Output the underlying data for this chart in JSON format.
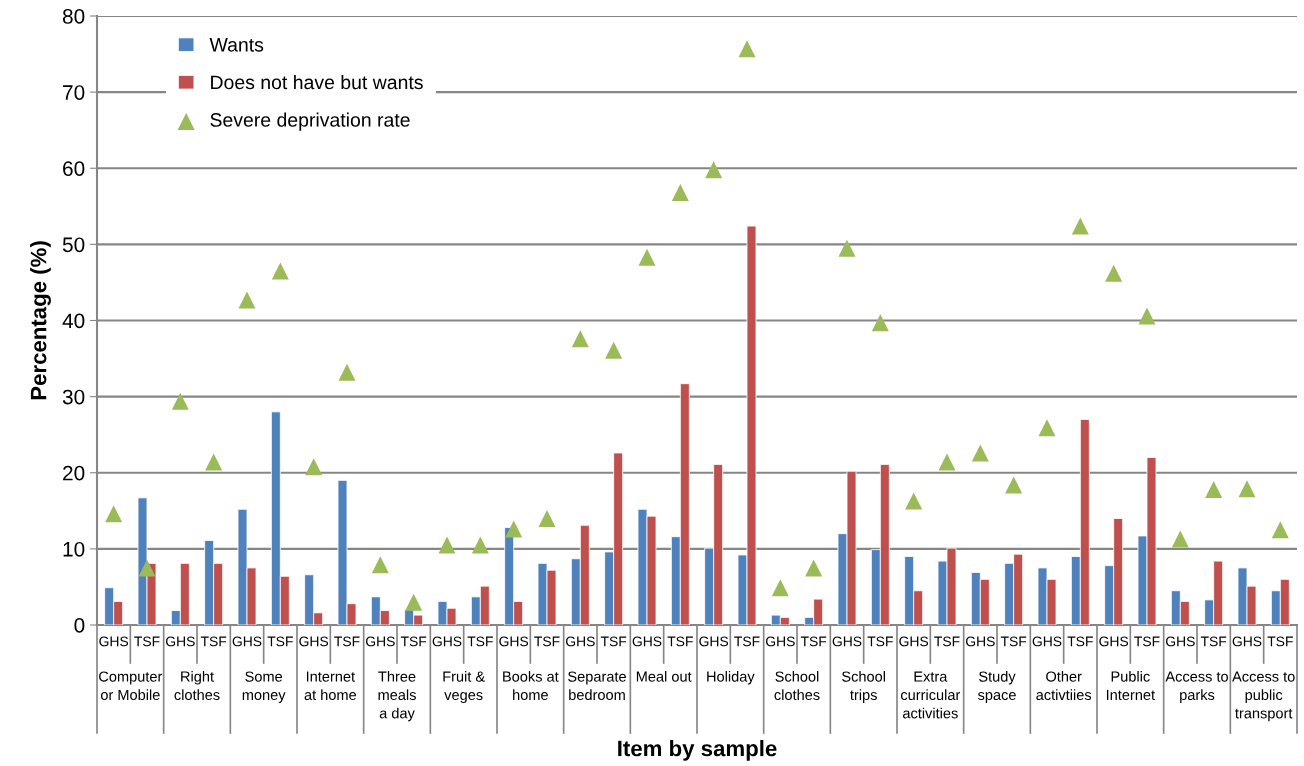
{
  "chart_data": {
    "type": "bar",
    "xlabel": "Item by sample",
    "ylabel": "Percentage (%)",
    "categories": [
      "GHS",
      "TSF",
      "GHS",
      "TSF",
      "GHS",
      "TSF",
      "GHS",
      "TSF",
      "GHS",
      "TSF",
      "GHS",
      "TSF",
      "GHS",
      "TSF",
      "GHS",
      "TSF",
      "GHS",
      "TSF",
      "GHS",
      "TSF",
      "GHS",
      "TSF",
      "GHS",
      "TSF",
      "GHS",
      "TSF",
      "GHS",
      "TSF",
      "GHS",
      "TSF",
      "GHS",
      "TSF",
      "GHS",
      "TSF",
      "GHS",
      "TSF"
    ],
    "annotations": [
      "Computer\nor Mobile",
      "Right\nclothes",
      "Some\nmoney",
      "Internet\nat home",
      "Three\nmeals\na day",
      "Fruit &\nveges",
      "Books at\nhome",
      "Separate\nbedroom",
      "Meal out",
      "Holiday",
      "School\nclothes",
      "School\ntrips",
      "Extra\ncurricular\nactivities",
      "Study\nspace",
      "Other\nactivtiies",
      "Public\nInternet",
      "Access to\nparks",
      "Access to\npublic\ntransport"
    ],
    "series": [
      {
        "name": "Wants",
        "color": "#4f81bd",
        "values": [
          4.9,
          16.7,
          1.9,
          11.1,
          15.2,
          28.0,
          6.6,
          19.0,
          3.7,
          2.0,
          3.1,
          3.7,
          12.8,
          8.1,
          8.7,
          9.6,
          15.2,
          11.6,
          10.1,
          9.2,
          1.3,
          1.0,
          12.0,
          9.9,
          9.0,
          8.4,
          6.9,
          8.1,
          7.5,
          9.0,
          7.8,
          11.7,
          4.5,
          3.3,
          7.5,
          4.5
        ]
      },
      {
        "name": "Does not have but wants",
        "color": "#c0504d",
        "values": [
          3.1,
          8.1,
          8.1,
          8.1,
          7.5,
          6.4,
          1.6,
          2.8,
          1.9,
          1.3,
          2.2,
          5.1,
          3.1,
          7.2,
          13.1,
          22.6,
          14.3,
          31.7,
          21.1,
          52.4,
          1.0,
          3.4,
          20.2,
          21.1,
          4.5,
          10.1,
          6.0,
          9.3,
          6.0,
          27.0,
          14.0,
          22.0,
          3.1,
          8.4,
          5.1,
          6.0
        ]
      },
      {
        "name": "Severe deprivation rate",
        "type": "scatter",
        "color": "#9bbb59",
        "values": [
          14.6,
          7.5,
          29.4,
          21.4,
          42.7,
          46.5,
          20.8,
          33.2,
          7.9,
          3.0,
          10.5,
          10.5,
          12.6,
          14.0,
          37.6,
          36.1,
          48.3,
          56.8,
          59.8,
          75.7,
          4.9,
          7.5,
          49.5,
          39.7,
          16.3,
          21.4,
          22.6,
          18.4,
          25.9,
          52.4,
          46.2,
          40.6,
          11.3,
          17.8,
          17.9,
          12.5
        ]
      }
    ],
    "ylim": [
      0,
      80
    ],
    "yticks": [
      0,
      10,
      20,
      30,
      40,
      50,
      60,
      70,
      80
    ],
    "grid": "y",
    "legend": "top left",
    "marker": "triangle"
  }
}
